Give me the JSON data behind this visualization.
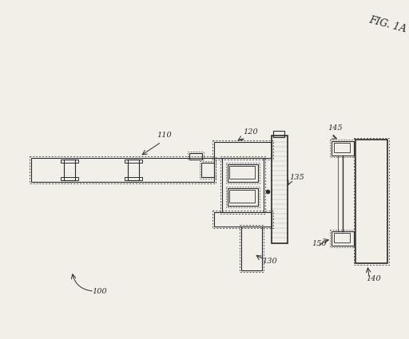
{
  "fig_label": "FIG. 1A",
  "bg_color": "#f2efe9",
  "line_color": "#2a2a2a",
  "lc_dot": "#555555"
}
